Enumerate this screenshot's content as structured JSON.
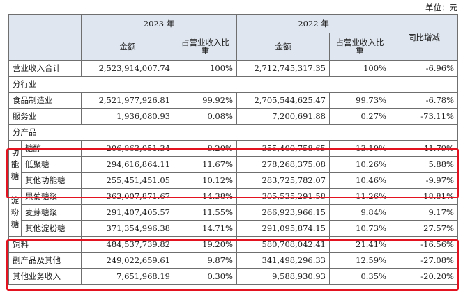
{
  "unit_label": "单位：元",
  "header": {
    "year_2023": "2023 年",
    "year_2022": "2022 年",
    "amount": "金额",
    "ratio": "占营业收入比重",
    "yoy": "同比增减"
  },
  "rows": {
    "total": [
      "营业收入合计",
      "2,523,914,007.74",
      "100%",
      "2,712,745,317.35",
      "100%",
      "-6.96%"
    ],
    "by_industry": "分行业",
    "food": [
      "食品制造业",
      "2,521,977,926.81",
      "99.92%",
      "2,705,544,625.47",
      "99.73%",
      "-6.78%"
    ],
    "service": [
      "服务业",
      "1,936,080.93",
      "0.08%",
      "7,200,691.88",
      "0.27%",
      "-73.11%"
    ],
    "by_product": "分产品",
    "group_functional": "功能糖",
    "sugar_alcohol": [
      "糖醇",
      "206,863,051.34",
      "8.20%",
      "355,400,758.65",
      "13.10%",
      "-41.79%"
    ],
    "oligo": [
      "低聚糖",
      "294,616,864.11",
      "11.67%",
      "278,268,375.08",
      "10.26%",
      "5.88%"
    ],
    "other_functional": [
      "其他功能糖",
      "255,451,451.05",
      "10.12%",
      "283,725,782.07",
      "10.46%",
      "-9.97%"
    ],
    "group_starch": "淀粉糖",
    "glucose": [
      "果葡糖浆",
      "363,007,871.67",
      "14.38%",
      "305,535,291.58",
      "11.26%",
      "18.81%"
    ],
    "maltose": [
      "麦芽糖浆",
      "291,407,405.57",
      "11.55%",
      "266,923,966.15",
      "9.84%",
      "9.17%"
    ],
    "other_starch": [
      "其他淀粉糖",
      "371,354,996.38",
      "14.71%",
      "291,095,874.15",
      "10.73%",
      "27.57%"
    ],
    "feed": [
      "饲料",
      "484,537,739.82",
      "19.20%",
      "580,708,042.41",
      "21.41%",
      "-16.56%"
    ],
    "byproduct": [
      "副产品及其他",
      "249,022,659.61",
      "9.87%",
      "341,498,296.33",
      "12.59%",
      "-27.08%"
    ],
    "other_business": [
      "其他业务收入",
      "7,651,968.19",
      "0.30%",
      "9,588,930.93",
      "0.35%",
      "-20.20%"
    ]
  },
  "colors": {
    "header_bg": "#dfe6ef",
    "highlight_border": "#e3141f",
    "grid": "#6f6f6f"
  }
}
